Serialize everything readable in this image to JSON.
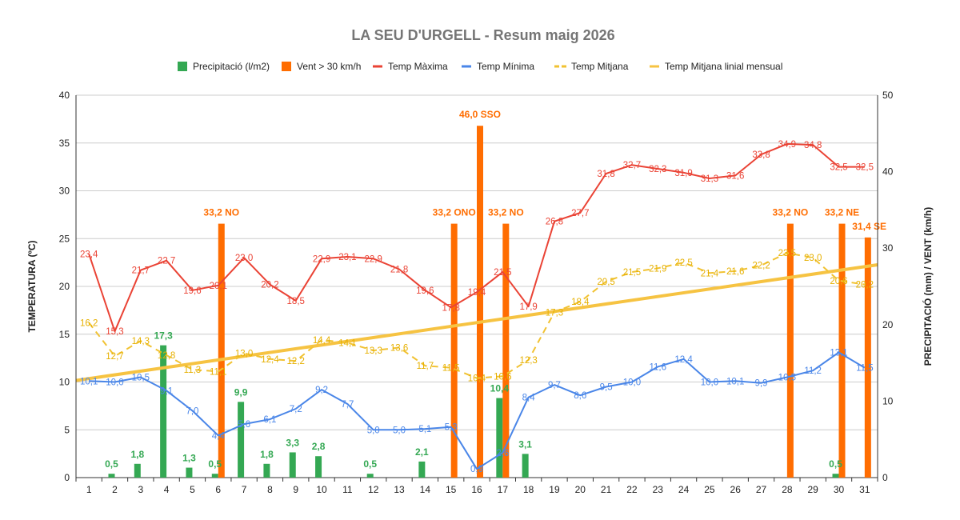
{
  "chart_data": {
    "type": "bar",
    "title": "LA SEU D'URGELL - Resum maig 2026",
    "ylabel": "TEMPERATURA (ºC)",
    "y2label": "PRECIPITACIÓ (mm) / VENT (km/h)",
    "ylim": [
      0,
      40
    ],
    "y2lim": [
      0,
      50
    ],
    "yticks": [
      "0",
      "5",
      "10",
      "15",
      "20",
      "25",
      "30",
      "35",
      "40"
    ],
    "y2ticks": [
      "0",
      "10",
      "20",
      "30",
      "40",
      "50"
    ],
    "grid": true,
    "legend_position": "top",
    "categories": [
      "1",
      "2",
      "3",
      "4",
      "5",
      "6",
      "7",
      "8",
      "9",
      "10",
      "11",
      "12",
      "13",
      "14",
      "15",
      "16",
      "17",
      "18",
      "19",
      "20",
      "21",
      "22",
      "23",
      "24",
      "25",
      "26",
      "27",
      "28",
      "29",
      "30",
      "31"
    ],
    "series": [
      {
        "name": "Precipitació (l/m2)",
        "kind": "bar",
        "axis": "right",
        "color": "#34a853",
        "values": [
          null,
          0.5,
          1.8,
          17.3,
          1.3,
          0.5,
          9.9,
          1.8,
          3.3,
          2.8,
          null,
          0.5,
          null,
          2.1,
          null,
          null,
          10.4,
          3.1,
          null,
          null,
          null,
          null,
          null,
          null,
          null,
          null,
          null,
          null,
          null,
          0.5,
          null
        ],
        "labels": [
          null,
          "0,5",
          "1,8",
          "17,3",
          "1,3",
          "0,5",
          "9,9",
          "1,8",
          "3,3",
          "2,8",
          null,
          "0,5",
          null,
          "2,1",
          null,
          null,
          "10,4",
          "3,1",
          null,
          null,
          null,
          null,
          null,
          null,
          null,
          null,
          null,
          null,
          null,
          "0,5",
          null
        ]
      },
      {
        "name": "Vent > 30 km/h",
        "kind": "bar",
        "axis": "right",
        "color": "#ff6d01",
        "values": [
          null,
          null,
          null,
          null,
          null,
          33.2,
          null,
          null,
          null,
          null,
          null,
          null,
          null,
          null,
          33.2,
          46.0,
          33.2,
          null,
          null,
          null,
          null,
          null,
          null,
          null,
          null,
          null,
          null,
          33.2,
          null,
          33.2,
          31.4
        ],
        "labels": [
          null,
          null,
          null,
          null,
          null,
          "33,2 NO",
          null,
          null,
          null,
          null,
          null,
          null,
          null,
          null,
          "33,2 ONO",
          "46,0 SSO",
          "33,2 NO",
          null,
          null,
          null,
          null,
          null,
          null,
          null,
          null,
          null,
          null,
          "33,2 NO",
          null,
          "33,2 NE",
          "31,4 SE"
        ]
      },
      {
        "name": "Temp Màxima",
        "kind": "line",
        "axis": "left",
        "color": "#ea4335",
        "values": [
          23.4,
          15.3,
          21.7,
          22.7,
          19.6,
          20.1,
          23.0,
          20.2,
          18.5,
          22.9,
          23.1,
          22.9,
          21.8,
          19.6,
          17.8,
          19.4,
          21.5,
          17.9,
          26.8,
          27.7,
          31.8,
          32.7,
          32.3,
          31.9,
          31.3,
          31.6,
          33.8,
          34.9,
          34.8,
          32.5,
          32.5
        ],
        "labels": [
          "23,4",
          "15,3",
          "21,7",
          "22,7",
          "19,6",
          "20,1",
          "23,0",
          "20,2",
          "18,5",
          "22,9",
          "23,1",
          "22,9",
          "21,8",
          "19,6",
          "17,8",
          "19,4",
          "21,5",
          "17,9",
          "26,8",
          "27,7",
          "31,8",
          "32,7",
          "32,3",
          "31,9",
          "31,3",
          "31,6",
          "33,8",
          "34,9",
          "34,8",
          "32,5",
          "32,5"
        ]
      },
      {
        "name": "Temp Mínima",
        "kind": "line",
        "axis": "left",
        "color": "#4a86e8",
        "values": [
          10.1,
          10.0,
          10.5,
          9.1,
          7.0,
          4.4,
          5.6,
          6.1,
          7.2,
          9.2,
          7.7,
          5.0,
          5.0,
          5.1,
          5.3,
          0.9,
          2.6,
          8.4,
          9.7,
          8.6,
          9.5,
          10.0,
          11.6,
          12.4,
          10.0,
          10.1,
          9.9,
          10.5,
          11.2,
          13.1,
          11.5
        ],
        "labels": [
          "10,1",
          "10,0",
          "10,5",
          "9,1",
          "7,0",
          "4,4",
          "5,6",
          "6,1",
          "7,2",
          "9,2",
          "7,7",
          "5,0",
          "5,0",
          "5,1",
          "5,3",
          "0,9",
          "2,6",
          "8,4",
          "9,7",
          "8,6",
          "9,5",
          "10,0",
          "11,6",
          "12,4",
          "10,0",
          "10,1",
          "9,9",
          "10,5",
          "11,2",
          "13,1",
          "11,5"
        ]
      },
      {
        "name": "Temp Mitjana",
        "kind": "dashed-line",
        "axis": "left",
        "color": "#f1c232",
        "values": [
          16.2,
          12.7,
          14.3,
          12.8,
          11.3,
          11.1,
          13.0,
          12.4,
          12.2,
          14.4,
          14.1,
          13.3,
          13.6,
          11.7,
          11.5,
          10.4,
          10.6,
          12.3,
          17.3,
          18.4,
          20.5,
          21.5,
          21.9,
          22.5,
          21.4,
          21.6,
          22.2,
          23.5,
          23.0,
          20.6,
          20.2
        ],
        "labels": [
          "16,2",
          "12,7",
          "14,3",
          "12,8",
          "11,3",
          "11,1",
          "13,0",
          "12,4",
          "12,2",
          "14,4",
          "14,1",
          "13,3",
          "13,6",
          "11,7",
          "11,5",
          "10,4",
          "10,6",
          "12,3",
          "17,3",
          "18,4",
          "20,5",
          "21,5",
          "21,9",
          "22,5",
          "21,4",
          "21,6",
          "22,2",
          "23,5",
          "23,0",
          "20,6",
          "20,2"
        ]
      },
      {
        "name": "Temp Mitjana linial mensual",
        "kind": "trendline",
        "axis": "left",
        "color": "#f6c342"
      }
    ]
  }
}
